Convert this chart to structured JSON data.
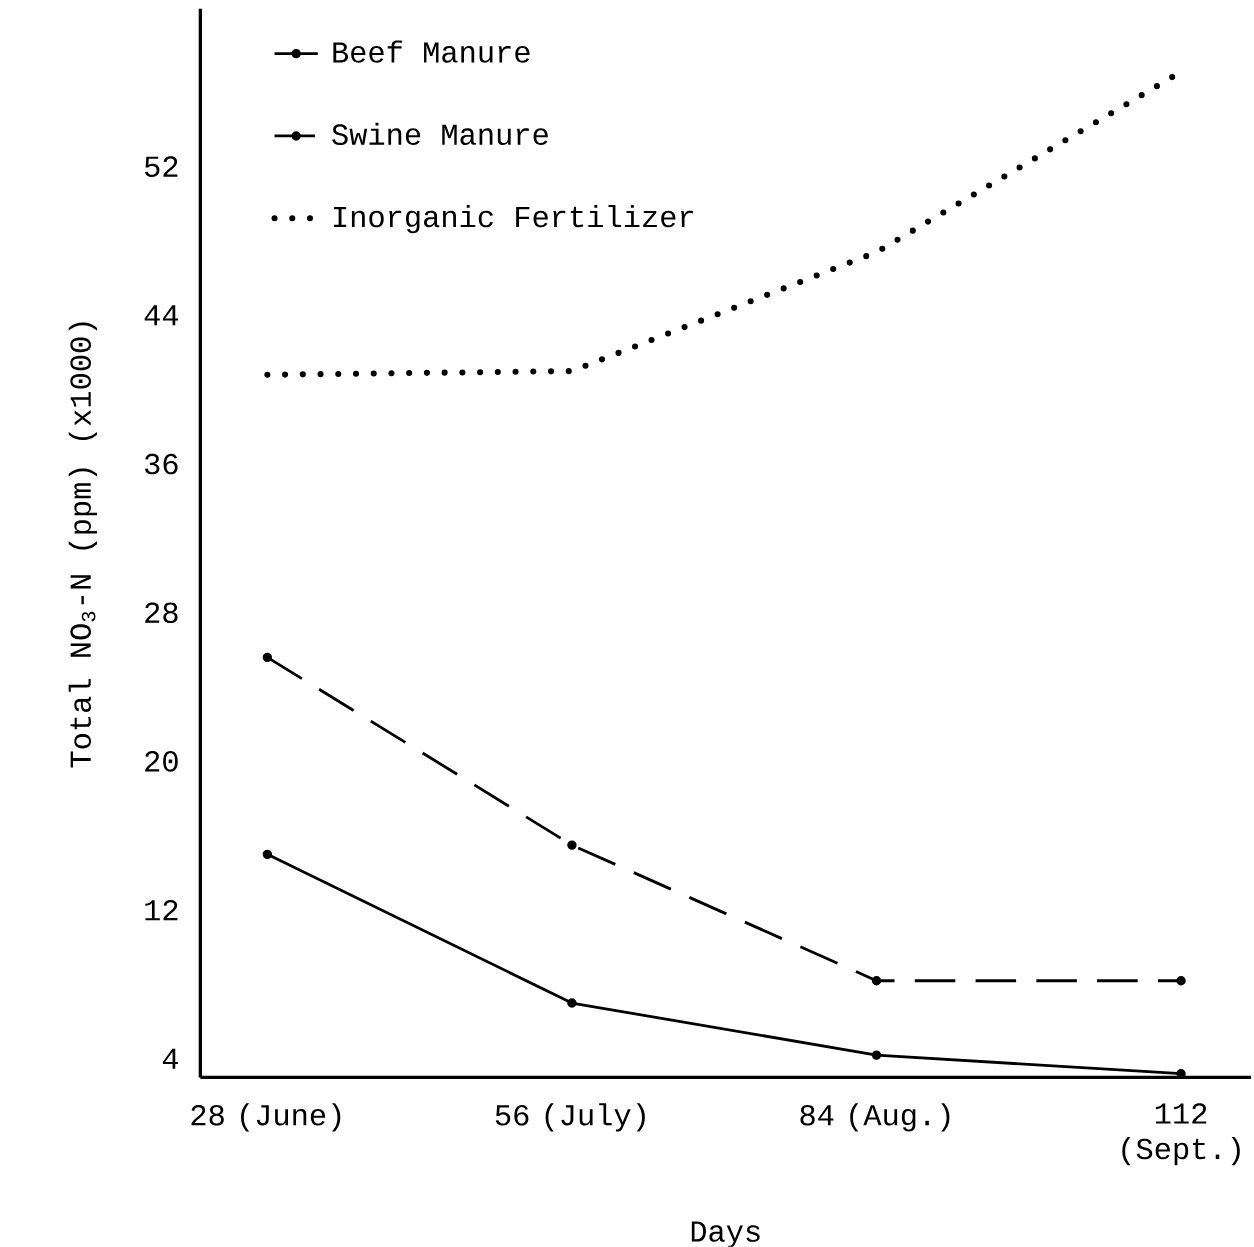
{
  "chart_data": {
    "type": "line",
    "xlabel": "Days",
    "ylabel": "Total NO$_{3}$-N (ppm) (x1000)",
    "categories": [
      "28 (June)",
      "56 (July)",
      "84 (Aug.)",
      "112 (Sept.)"
    ],
    "series": [
      {
        "name": "Beef Manure",
        "color": "#000000",
        "line_style": "solid",
        "marker": "circle",
        "values": [
          15,
          7.0,
          4.2,
          3.2
        ]
      },
      {
        "name": "Swine Manure",
        "color": "#000000",
        "line_style": "dashed",
        "marker": "circle",
        "values": [
          25.6,
          15.5,
          8.2,
          8.2
        ]
      },
      {
        "name": "Inorganic Fertilizer",
        "color": "#000000",
        "line_style": "dotted",
        "marker": "none",
        "values": [
          40.8,
          41.0,
          47.4,
          57.1
        ]
      }
    ],
    "ylim": [
      3,
      60.5
    ],
    "yticks": [
      4,
      12,
      20,
      28,
      36,
      44,
      52
    ],
    "grid": false,
    "legend": "top left"
  }
}
